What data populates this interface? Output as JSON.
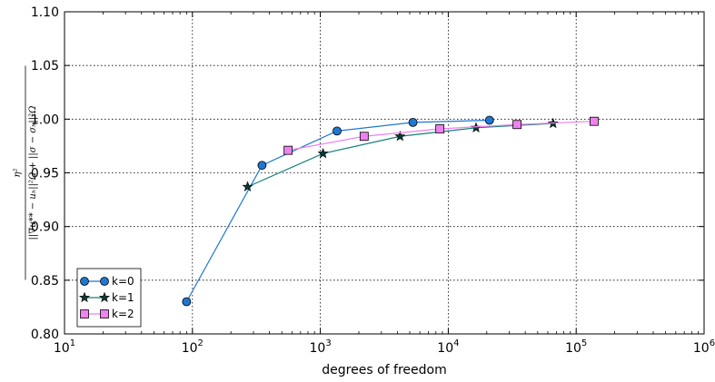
{
  "chart_data": {
    "type": "line",
    "xscale": "log",
    "xlim": [
      10,
      1000000
    ],
    "ylim": [
      0.8,
      1.1
    ],
    "xticks": [
      10,
      100,
      1000,
      10000,
      100000,
      1000000
    ],
    "xtick_bases": [
      "10",
      "10",
      "10",
      "10",
      "10",
      "10"
    ],
    "xtick_exponents": [
      "1",
      "2",
      "3",
      "4",
      "5",
      "6"
    ],
    "yticks": [
      0.8,
      0.85,
      0.9,
      0.95,
      1.0,
      1.05,
      1.1
    ],
    "ytick_labels": [
      "0.80",
      "0.85",
      "0.90",
      "0.95",
      "1.00",
      "1.05",
      "1.10"
    ],
    "xlabel": "degrees of freedom",
    "ylabel": {
      "numerator": "η²",
      "denominator": "||∇u** − uₕ||²Ω + ||σ − σₕ||²Ω"
    },
    "grid": true,
    "legend_position": "lower-left",
    "series": [
      {
        "name": "k=0",
        "color": "#1f77d2",
        "marker": "circle",
        "x": [
          90,
          350,
          1350,
          5300,
          21000
        ],
        "y": [
          0.83,
          0.957,
          0.989,
          0.997,
          0.999
        ]
      },
      {
        "name": "k=1",
        "color": "#137f7a",
        "marker": "star",
        "x": [
          270,
          1050,
          4200,
          16500,
          66000
        ],
        "y": [
          0.937,
          0.968,
          0.984,
          0.992,
          0.996
        ]
      },
      {
        "name": "k=2",
        "color": "#ee82ee",
        "marker": "square",
        "x": [
          560,
          2200,
          8600,
          34500,
          138000
        ],
        "y": [
          0.971,
          0.984,
          0.991,
          0.995,
          0.998
        ]
      }
    ]
  }
}
